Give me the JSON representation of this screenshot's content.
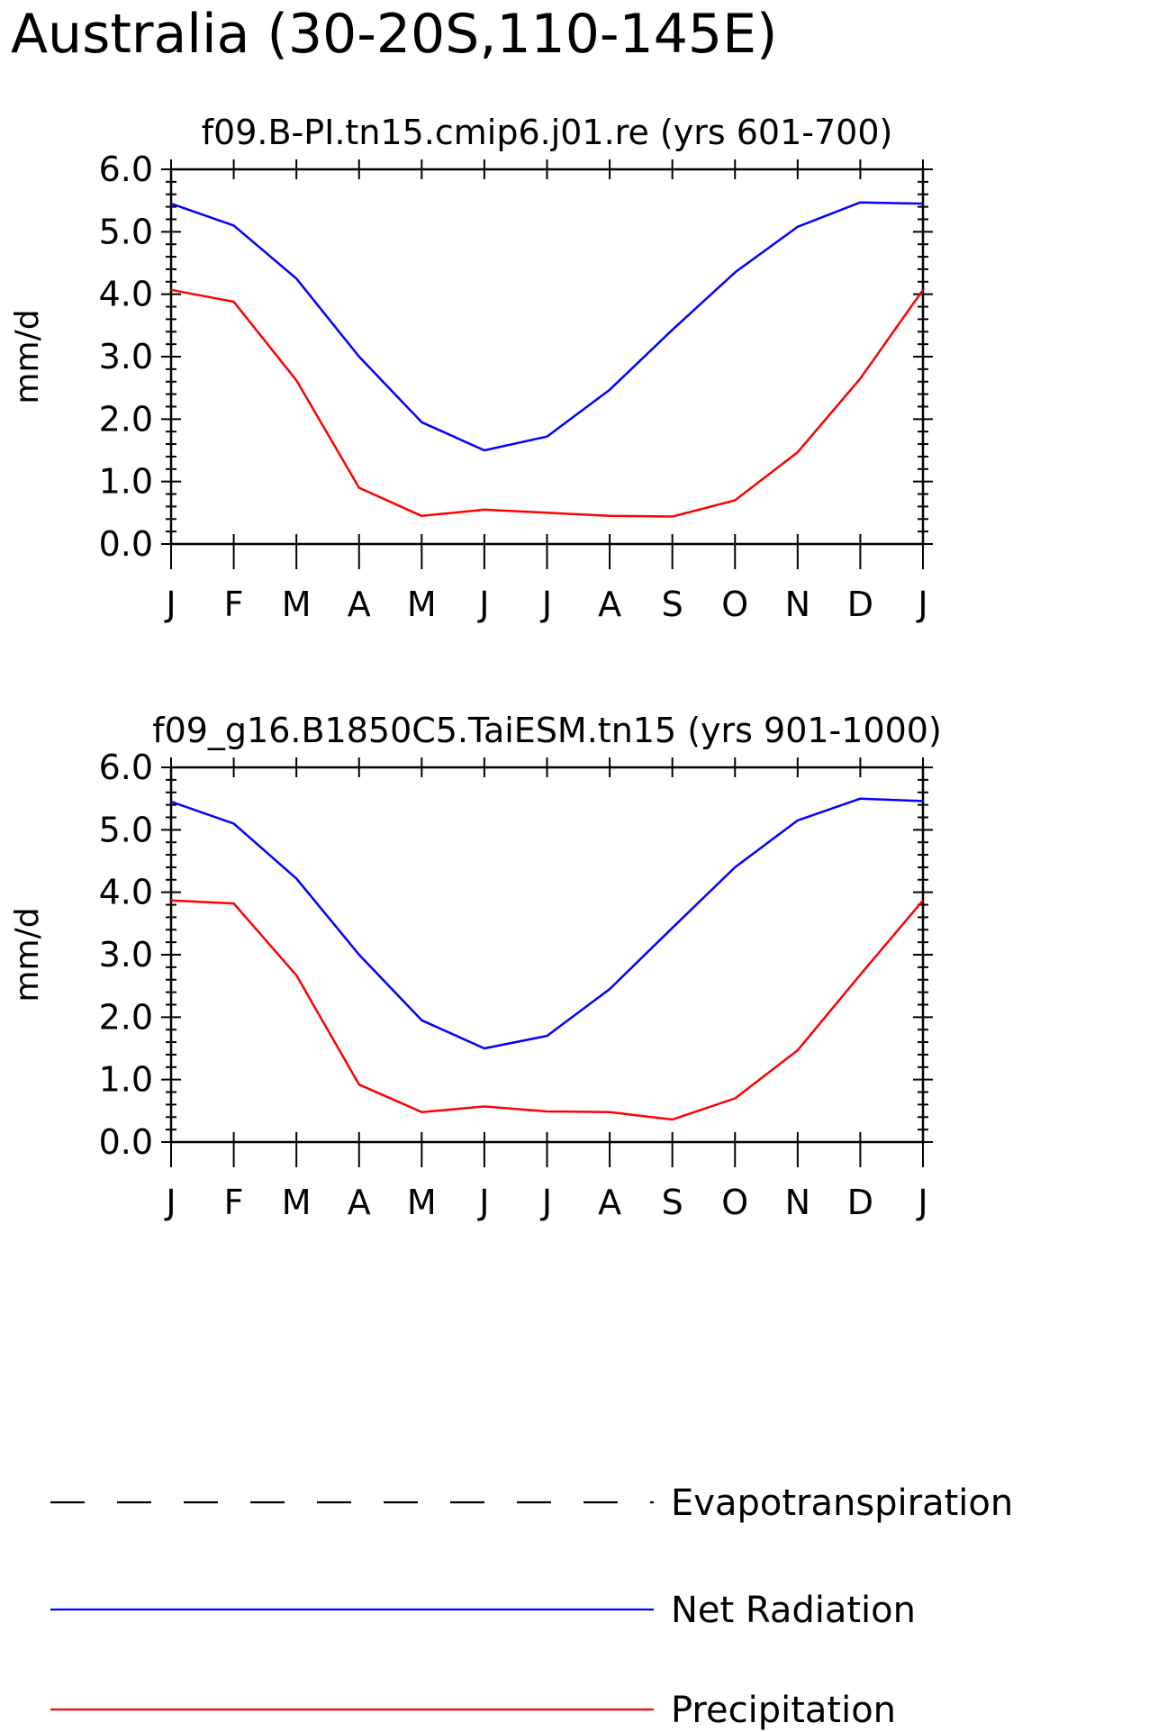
{
  "figure_title": "Australia (30-20S,110-145E)",
  "chart_data": [
    {
      "type": "line",
      "title": "f09.B-PI.tn15.cmip6.j01.re (yrs 601-700)",
      "xlabel": "",
      "ylabel": "mm/d",
      "categories": [
        "J",
        "F",
        "M",
        "A",
        "M",
        "J",
        "J",
        "A",
        "S",
        "O",
        "N",
        "D",
        "J"
      ],
      "yticks": [
        "0.0",
        "1.0",
        "2.0",
        "3.0",
        "4.0",
        "5.0",
        "6.0"
      ],
      "ylim": [
        0,
        6
      ],
      "grid": false,
      "series": [
        {
          "name": "Net Radiation",
          "color": "#0000ff",
          "values": [
            5.45,
            5.1,
            4.25,
            3.0,
            1.95,
            1.5,
            1.72,
            2.47,
            3.43,
            4.35,
            5.08,
            5.47,
            5.45
          ]
        },
        {
          "name": "Precipitation",
          "color": "#ff0000",
          "values": [
            4.07,
            3.88,
            2.62,
            0.9,
            0.45,
            0.55,
            0.5,
            0.45,
            0.44,
            0.7,
            1.47,
            2.65,
            4.07
          ]
        }
      ]
    },
    {
      "type": "line",
      "title": "f09_g16.B1850C5.TaiESM.tn15 (yrs 901-1000)",
      "xlabel": "",
      "ylabel": "mm/d",
      "categories": [
        "J",
        "F",
        "M",
        "A",
        "M",
        "J",
        "J",
        "A",
        "S",
        "O",
        "N",
        "D",
        "J"
      ],
      "yticks": [
        "0.0",
        "1.0",
        "2.0",
        "3.0",
        "4.0",
        "5.0",
        "6.0"
      ],
      "ylim": [
        0,
        6
      ],
      "grid": false,
      "series": [
        {
          "name": "Net Radiation",
          "color": "#0000ff",
          "values": [
            5.45,
            5.1,
            4.22,
            3.0,
            1.95,
            1.5,
            1.7,
            2.45,
            3.43,
            4.4,
            5.15,
            5.5,
            5.46
          ]
        },
        {
          "name": "Precipitation",
          "color": "#ff0000",
          "values": [
            3.87,
            3.82,
            2.67,
            0.92,
            0.48,
            0.57,
            0.49,
            0.48,
            0.36,
            0.7,
            1.47,
            2.68,
            3.87
          ]
        }
      ]
    }
  ],
  "legend": {
    "placement": "bottom",
    "items": [
      {
        "label": "Evapotranspiration",
        "color": "#000000",
        "style": "dashed"
      },
      {
        "label": "Net Radiation",
        "color": "#0000ff",
        "style": "solid"
      },
      {
        "label": "Precipitation",
        "color": "#ff0000",
        "style": "solid"
      }
    ]
  }
}
